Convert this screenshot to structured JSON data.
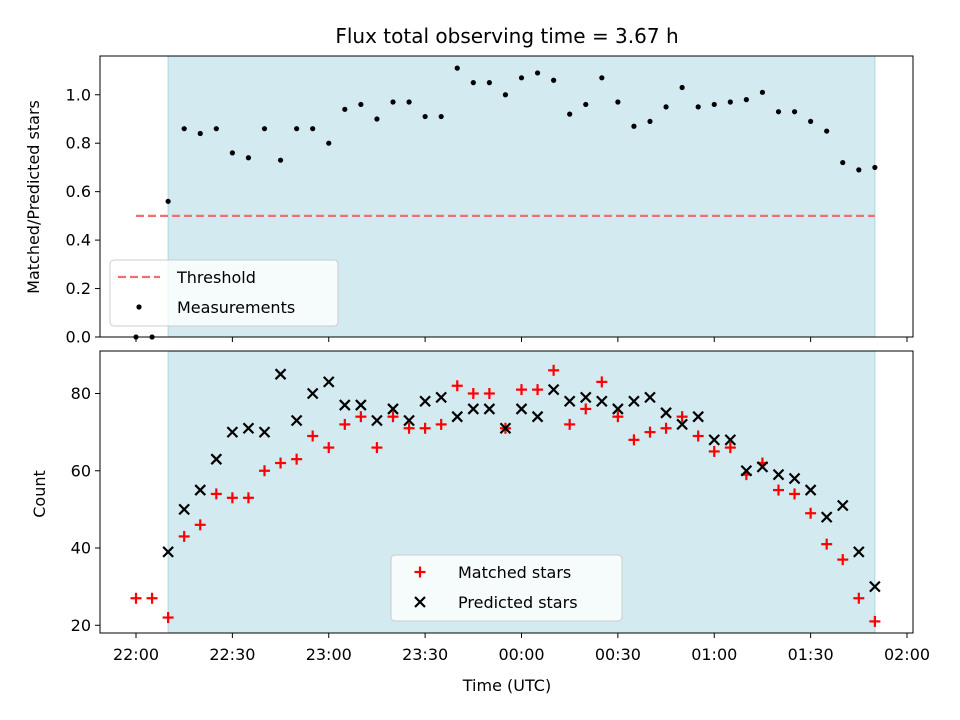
{
  "chart_data": [
    {
      "type": "scatter",
      "title": "Flux total observing time = 3.67 h",
      "xlabel": "",
      "ylabel": "Matched/Predicted stars",
      "ylim": [
        0,
        1.16
      ],
      "yticks": [
        "0.0",
        "0.2",
        "0.4",
        "0.6",
        "0.8",
        "1.0"
      ],
      "shaded_region": {
        "x_start": "22:10",
        "x_end": "01:50",
        "color": "#d3eaf0"
      },
      "threshold": {
        "name": "Threshold",
        "value": 0.5,
        "x_start": "22:00",
        "x_end": "01:50",
        "color": "#f07070"
      },
      "series": [
        {
          "name": "Measurements",
          "color": "#000000",
          "x": [
            "22:00",
            "22:05",
            "22:10",
            "22:15",
            "22:20",
            "22:25",
            "22:30",
            "22:35",
            "22:40",
            "22:45",
            "22:50",
            "22:55",
            "23:00",
            "23:05",
            "23:10",
            "23:15",
            "23:20",
            "23:25",
            "23:30",
            "23:35",
            "23:40",
            "23:45",
            "23:50",
            "23:55",
            "00:00",
            "00:05",
            "00:10",
            "00:15",
            "00:20",
            "00:25",
            "00:30",
            "00:35",
            "00:40",
            "00:45",
            "00:50",
            "00:55",
            "01:00",
            "01:05",
            "01:10",
            "01:15",
            "01:20",
            "01:25",
            "01:30",
            "01:35",
            "01:40",
            "01:45",
            "01:50"
          ],
          "y": [
            0.0,
            0.0,
            0.56,
            0.86,
            0.84,
            0.86,
            0.76,
            0.74,
            0.86,
            0.73,
            0.86,
            0.86,
            0.8,
            0.94,
            0.96,
            0.9,
            0.97,
            0.97,
            0.91,
            0.91,
            1.11,
            1.05,
            1.05,
            1.0,
            1.07,
            1.09,
            1.06,
            0.92,
            0.96,
            1.07,
            0.97,
            0.87,
            0.89,
            0.95,
            1.03,
            0.95,
            0.96,
            0.97,
            0.98,
            1.01,
            0.93,
            0.93,
            0.89,
            0.85,
            0.72,
            0.69,
            0.7
          ]
        }
      ],
      "legend": {
        "placement": "lower-left",
        "entries": [
          "Threshold",
          "Measurements"
        ]
      }
    },
    {
      "type": "scatter",
      "title": "",
      "xlabel": "Time (UTC)",
      "ylabel": "Count",
      "ylim": [
        18,
        91
      ],
      "yticks": [
        "20",
        "40",
        "60",
        "80"
      ],
      "xticks": [
        "22:00",
        "22:30",
        "23:00",
        "23:30",
        "00:00",
        "00:30",
        "01:00",
        "01:30",
        "02:00"
      ],
      "shaded_region": {
        "x_start": "22:10",
        "x_end": "01:50",
        "color": "#d3eaf0"
      },
      "series": [
        {
          "name": "Matched stars",
          "color": "#ff0000",
          "marker": "+",
          "x": [
            "22:00",
            "22:05",
            "22:10",
            "22:15",
            "22:20",
            "22:25",
            "22:30",
            "22:35",
            "22:40",
            "22:45",
            "22:50",
            "22:55",
            "23:00",
            "23:05",
            "23:10",
            "23:15",
            "23:20",
            "23:25",
            "23:30",
            "23:35",
            "23:40",
            "23:45",
            "23:50",
            "23:55",
            "00:00",
            "00:05",
            "00:10",
            "00:15",
            "00:20",
            "00:25",
            "00:30",
            "00:35",
            "00:40",
            "00:45",
            "00:50",
            "00:55",
            "01:00",
            "01:05",
            "01:10",
            "01:15",
            "01:20",
            "01:25",
            "01:30",
            "01:35",
            "01:40",
            "01:45",
            "01:50"
          ],
          "y": [
            27,
            27,
            22,
            43,
            46,
            54,
            53,
            53,
            60,
            62,
            63,
            69,
            66,
            72,
            74,
            66,
            74,
            71,
            71,
            72,
            82,
            80,
            80,
            71,
            81,
            81,
            86,
            72,
            76,
            83,
            74,
            68,
            70,
            71,
            74,
            69,
            65,
            66,
            59,
            62,
            55,
            54,
            49,
            41,
            37,
            27,
            21
          ]
        },
        {
          "name": "Predicted stars",
          "color": "#000000",
          "marker": "x",
          "x": [
            "22:10",
            "22:15",
            "22:20",
            "22:25",
            "22:30",
            "22:35",
            "22:40",
            "22:45",
            "22:50",
            "22:55",
            "23:00",
            "23:05",
            "23:10",
            "23:15",
            "23:20",
            "23:25",
            "23:30",
            "23:35",
            "23:40",
            "23:45",
            "23:50",
            "23:55",
            "00:00",
            "00:05",
            "00:10",
            "00:15",
            "00:20",
            "00:25",
            "00:30",
            "00:35",
            "00:40",
            "00:45",
            "00:50",
            "00:55",
            "01:00",
            "01:05",
            "01:10",
            "01:15",
            "01:20",
            "01:25",
            "01:30",
            "01:35",
            "01:40",
            "01:45",
            "01:50"
          ],
          "y": [
            39,
            50,
            55,
            63,
            70,
            71,
            70,
            85,
            73,
            80,
            83,
            77,
            77,
            73,
            76,
            73,
            78,
            79,
            74,
            76,
            76,
            71,
            76,
            74,
            81,
            78,
            79,
            78,
            76,
            78,
            79,
            75,
            72,
            74,
            68,
            68,
            60,
            61,
            59,
            58,
            55,
            48,
            51,
            39,
            30
          ]
        }
      ],
      "legend": {
        "placement": "lower-center",
        "entries": [
          "Matched stars",
          "Predicted stars"
        ]
      }
    }
  ]
}
